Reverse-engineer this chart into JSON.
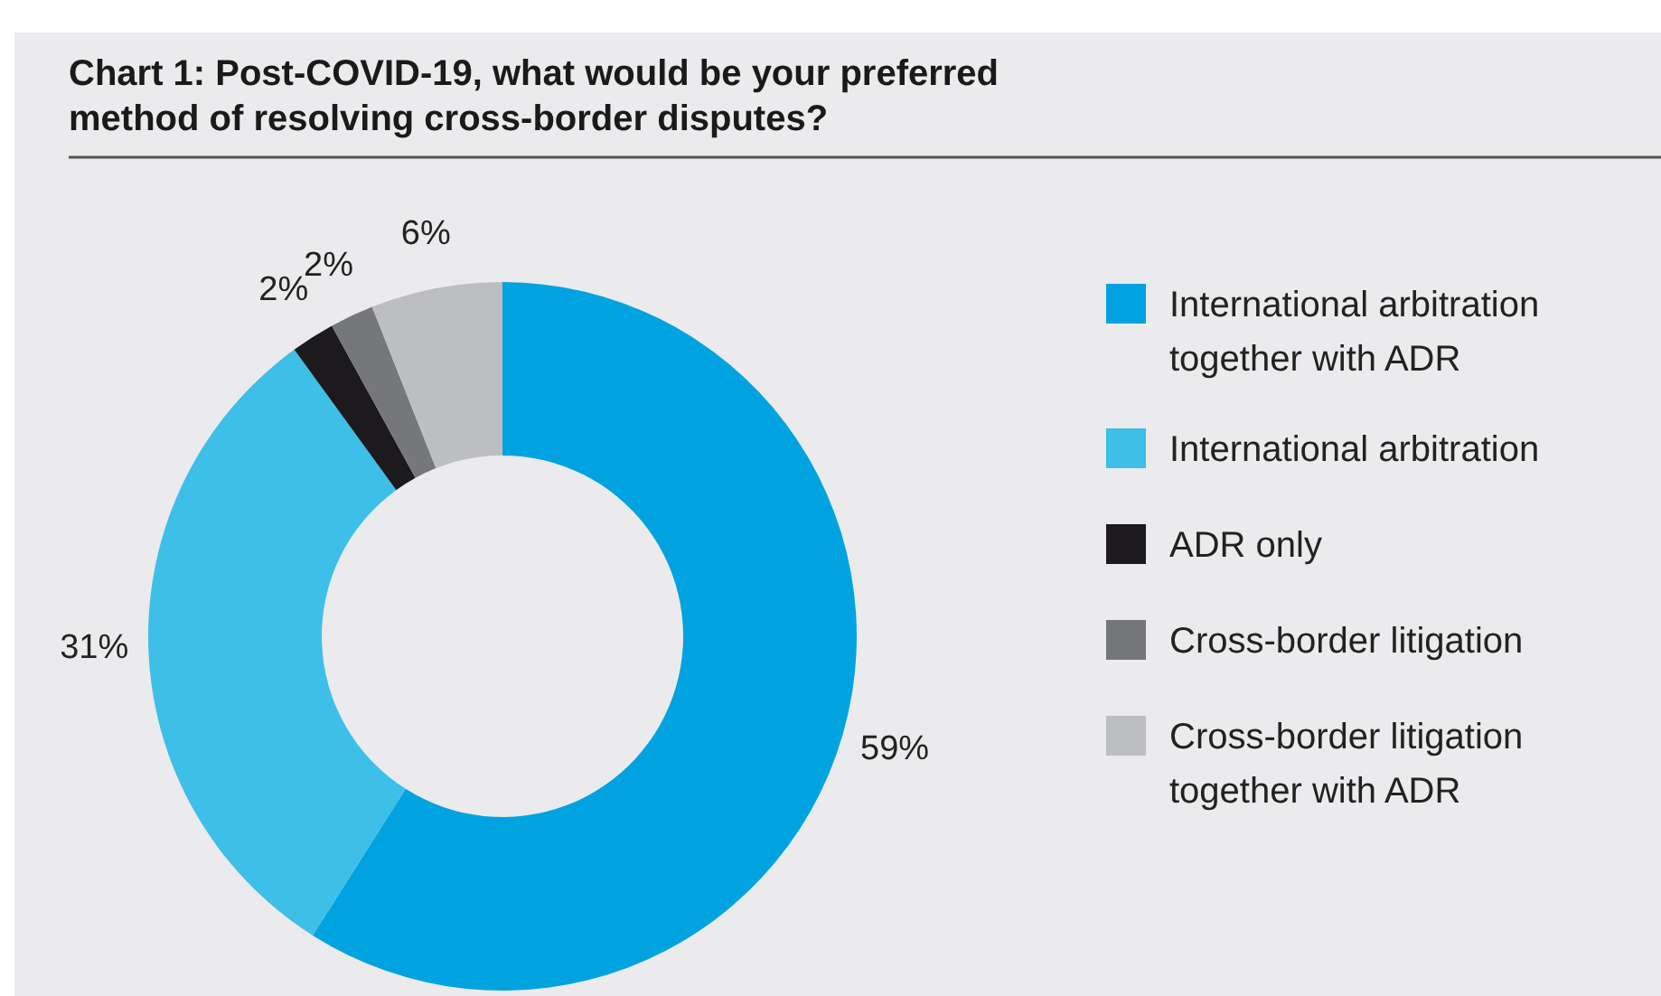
{
  "chart_data": {
    "type": "donut",
    "title": "Chart 1: Post-COVID-19, what would be your preferred method of resolving cross-border disputes?",
    "categories": [
      "International arbitration together with ADR",
      "International arbitration",
      "ADR only",
      "Cross-border litigation",
      "Cross-border litigation together with ADR"
    ],
    "values": [
      59,
      31,
      2,
      2,
      6
    ],
    "colors": [
      "#00a3e0",
      "#3dbfe8",
      "#1c1a1d",
      "#76777a",
      "#bdbec0"
    ],
    "value_labels": [
      "59%",
      "31%",
      "2%",
      "2%",
      "6%"
    ],
    "legend": "right"
  }
}
